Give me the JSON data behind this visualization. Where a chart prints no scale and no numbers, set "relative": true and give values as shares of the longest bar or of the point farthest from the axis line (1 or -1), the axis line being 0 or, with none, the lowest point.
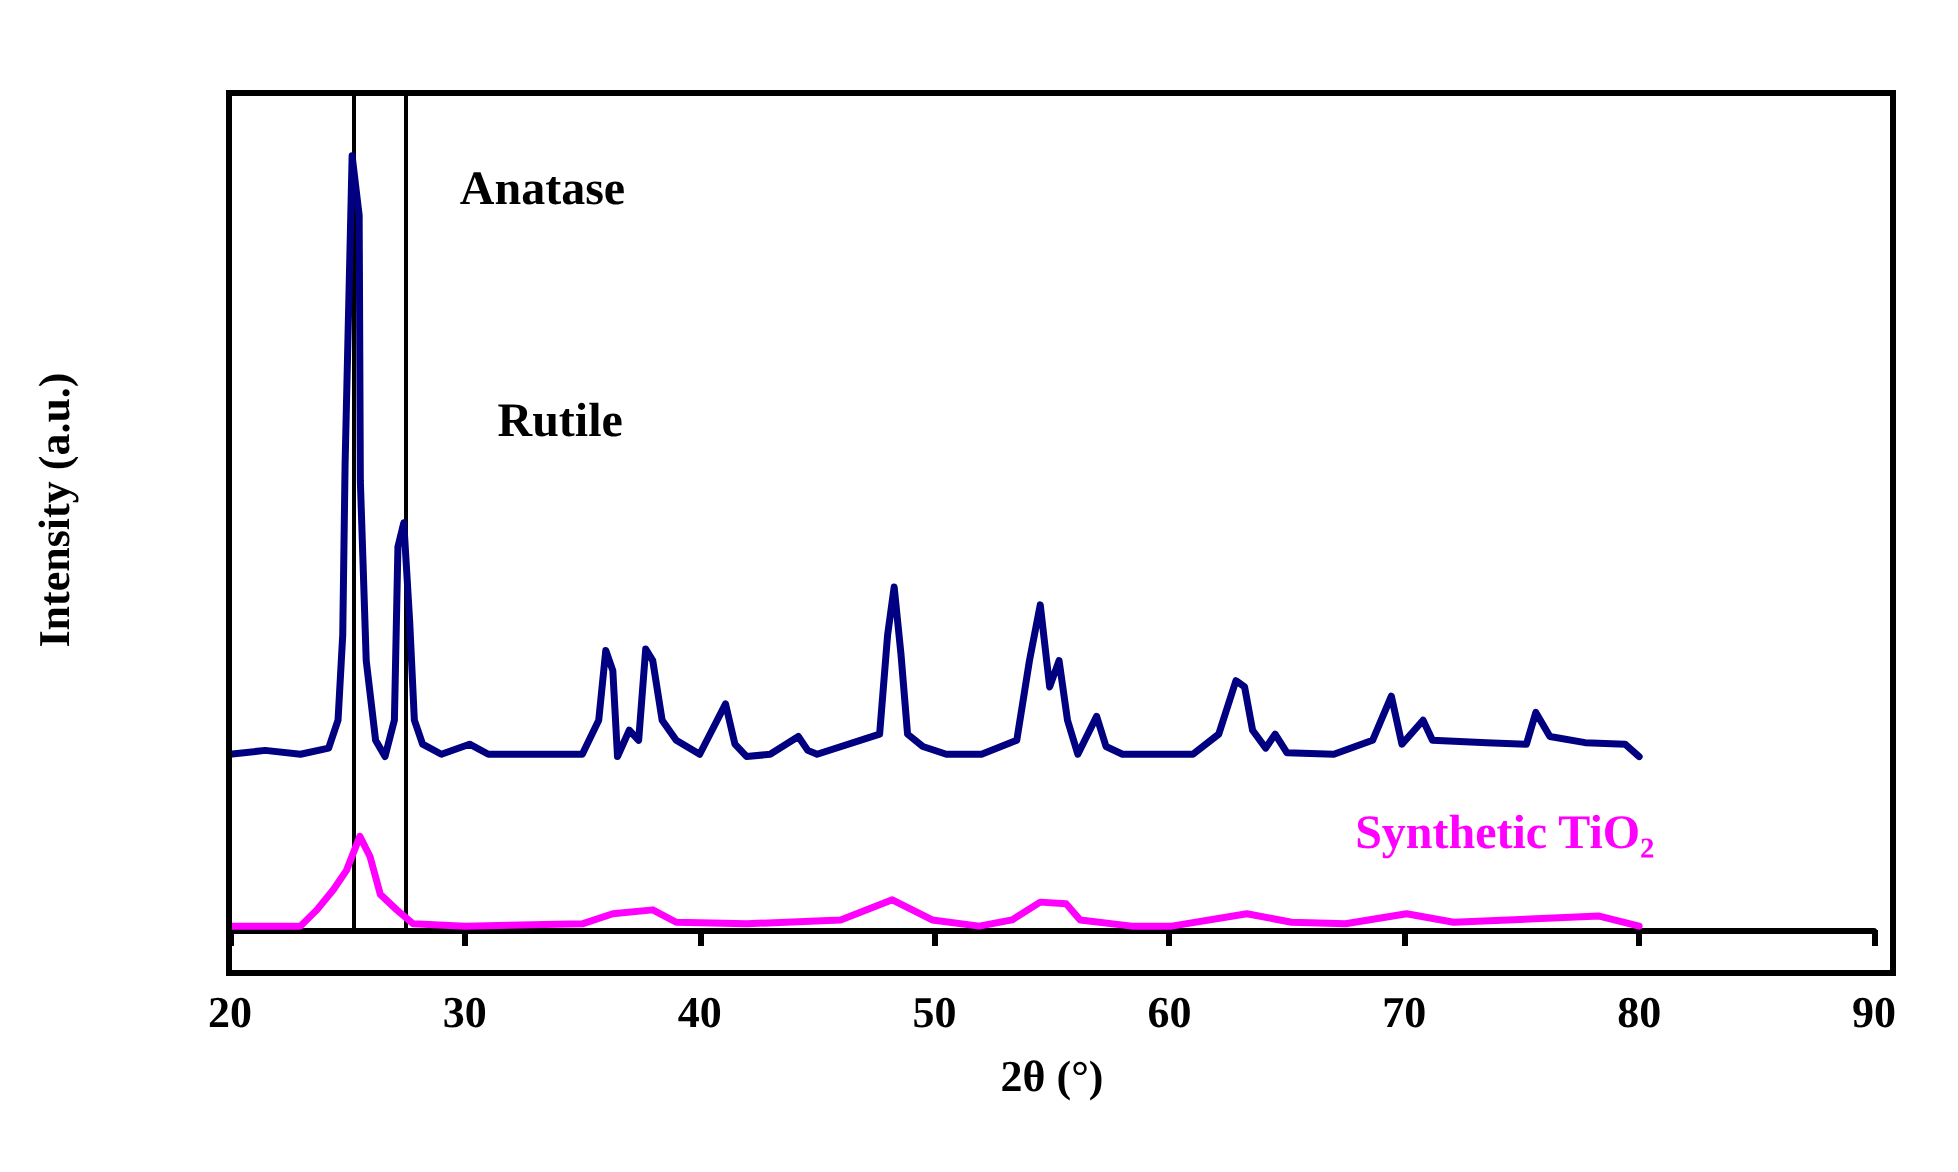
{
  "chart_data": {
    "type": "line",
    "relative": true,
    "xlabel": "2θ (°)",
    "ylabel": "Intensity (a.u.)",
    "xlim": [
      20,
      90
    ],
    "xticks": [
      20,
      30,
      40,
      50,
      60,
      70,
      80,
      90
    ],
    "tick_labels": "x",
    "grid": false,
    "legend": false,
    "marker": "none",
    "line_style": "solid",
    "series": [
      {
        "color": "#000080",
        "x": [
          20,
          21.5,
          23,
          24.2,
          24.6,
          24.8,
          24.9,
          25.2,
          25.5,
          25.55,
          25.8,
          26.2,
          26.6,
          27.0,
          27.15,
          27.4,
          27.65,
          27.85,
          28.2,
          29,
          30.2,
          31,
          35,
          35.7,
          36.0,
          36.3,
          36.5,
          37,
          37.4,
          37.7,
          38.0,
          38.4,
          39,
          40,
          41.1,
          41.5,
          42,
          43,
          44.2,
          44.6,
          45,
          47.66,
          48.0,
          48.28,
          48.57,
          48.85,
          49.5,
          50.5,
          52,
          53.5,
          54.04,
          54.5,
          54.9,
          55.3,
          55.66,
          56.1,
          56.9,
          57.3,
          58,
          61,
          62.1,
          62.83,
          63.2,
          63.54,
          64.1,
          64.5,
          65,
          67,
          68.65,
          69.45,
          69.9,
          70.8,
          71.2,
          73.5,
          75.2,
          75.6,
          76.2,
          77.7,
          79.4,
          80
        ],
        "values": [
          0.227,
          0.232,
          0.227,
          0.235,
          0.271,
          0.381,
          0.601,
          1,
          0.923,
          0.58,
          0.348,
          0.245,
          0.224,
          0.271,
          0.495,
          0.526,
          0.399,
          0.271,
          0.24,
          0.227,
          0.24,
          0.227,
          0.227,
          0.271,
          0.361,
          0.335,
          0.224,
          0.258,
          0.245,
          0.363,
          0.348,
          0.271,
          0.245,
          0.227,
          0.292,
          0.24,
          0.224,
          0.227,
          0.25,
          0.232,
          0.227,
          0.253,
          0.381,
          0.443,
          0.356,
          0.253,
          0.237,
          0.227,
          0.227,
          0.245,
          0.348,
          0.42,
          0.314,
          0.348,
          0.271,
          0.227,
          0.276,
          0.237,
          0.227,
          0.227,
          0.253,
          0.322,
          0.314,
          0.258,
          0.235,
          0.253,
          0.229,
          0.227,
          0.245,
          0.302,
          0.24,
          0.271,
          0.245,
          0.242,
          0.24,
          0.281,
          0.25,
          0.242,
          0.24,
          0.224
        ]
      },
      {
        "name": "Synthetic TiO₂",
        "color": "#ff00ff",
        "x": [
          20,
          22,
          23.0,
          23.7,
          24.4,
          24.96,
          25.53,
          25.96,
          26.4,
          27.1,
          27.8,
          30,
          35,
          36.3,
          38.0,
          39,
          42,
          46,
          48.2,
          49.9,
          51.9,
          53.3,
          54.5,
          55.6,
          56.2,
          58.4,
          60.1,
          63.3,
          65.2,
          67.5,
          70.1,
          72.1,
          78.3,
          80
        ],
        "values": [
          0.005,
          0.005,
          0.005,
          0.026,
          0.052,
          0.077,
          0.121,
          0.095,
          0.046,
          0.026,
          0.008,
          0.005,
          0.008,
          0.021,
          0.026,
          0.01,
          0.008,
          0.013,
          0.039,
          0.013,
          0.005,
          0.013,
          0.036,
          0.034,
          0.013,
          0.005,
          0.005,
          0.021,
          0.01,
          0.008,
          0.021,
          0.01,
          0.018,
          0.005
        ]
      }
    ],
    "ref_lines": [
      {
        "axis": "x",
        "value": 25.3,
        "label": "Anatase",
        "color": "#000000"
      },
      {
        "axis": "x",
        "value": 27.5,
        "label": "Rutile",
        "color": "#000000"
      }
    ]
  }
}
